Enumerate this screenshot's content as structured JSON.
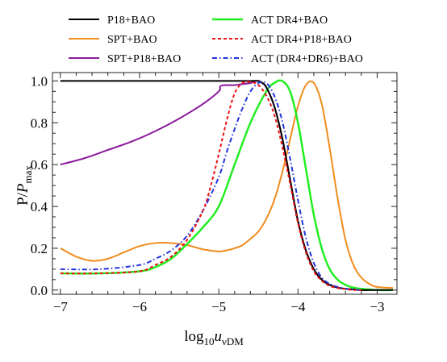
{
  "chart_data": {
    "type": "line",
    "xlabel": {
      "base": "log",
      "base_sub": "10",
      "main": "u",
      "main_sub": "νDM"
    },
    "ylabel": {
      "main": "P/",
      "italic": "P",
      "sub": "max"
    },
    "xlim": [
      -7.1,
      -2.75
    ],
    "ylim": [
      -0.02,
      1.04
    ],
    "x_ticks": [
      -7,
      -6,
      -5,
      -4,
      -3
    ],
    "x_tick_labels": [
      "−7",
      "−6",
      "−5",
      "−4",
      "−3"
    ],
    "y_ticks": [
      0.0,
      0.2,
      0.4,
      0.6,
      0.8,
      1.0
    ],
    "y_tick_labels": [
      "0.0",
      "0.2",
      "0.4",
      "0.6",
      "0.8",
      "1.0"
    ],
    "grid": false,
    "legend_position": "top",
    "series": [
      {
        "name": "P18+BAO",
        "color": "#000000",
        "dash": "solid",
        "width": 2,
        "x": [
          -7.0,
          -6.5,
          -6.0,
          -5.5,
          -5.0,
          -4.8,
          -4.7,
          -4.6,
          -4.5,
          -4.45,
          -4.4,
          -4.3,
          -4.2,
          -4.1,
          -4.0,
          -3.9,
          -3.8,
          -3.7,
          -3.6,
          -3.5,
          -3.4,
          -3.3,
          -3.2,
          -3.1,
          -3.0,
          -2.9,
          -2.8
        ],
        "y": [
          1.0,
          1.0,
          1.0,
          1.0,
          1.0,
          1.0,
          1.0,
          1.0,
          1.0,
          0.99,
          0.97,
          0.88,
          0.73,
          0.53,
          0.33,
          0.19,
          0.1,
          0.05,
          0.025,
          0.012,
          0.006,
          0.003,
          0.0,
          0.0,
          0.0,
          0.0,
          0.0
        ]
      },
      {
        "name": "SPT+BAO",
        "color": "#f08c1e",
        "dash": "solid",
        "width": 2,
        "x": [
          -7.0,
          -6.8,
          -6.6,
          -6.4,
          -6.2,
          -6.0,
          -5.8,
          -5.6,
          -5.4,
          -5.2,
          -5.0,
          -4.9,
          -4.8,
          -4.7,
          -4.6,
          -4.5,
          -4.4,
          -4.3,
          -4.2,
          -4.1,
          -4.0,
          -3.9,
          -3.8,
          -3.7,
          -3.6,
          -3.5,
          -3.4,
          -3.3,
          -3.2,
          -3.1,
          -3.0,
          -2.8
        ],
        "y": [
          0.2,
          0.16,
          0.14,
          0.15,
          0.18,
          0.21,
          0.225,
          0.225,
          0.215,
          0.195,
          0.185,
          0.19,
          0.2,
          0.215,
          0.245,
          0.28,
          0.34,
          0.43,
          0.56,
          0.72,
          0.88,
          0.98,
          0.99,
          0.89,
          0.68,
          0.44,
          0.24,
          0.12,
          0.06,
          0.03,
          0.015,
          0.01
        ]
      },
      {
        "name": "SPT+P18+BAO",
        "color": "#8b1a9b",
        "dash": "solid",
        "width": 2,
        "x": [
          -7.0,
          -6.7,
          -6.4,
          -6.1,
          -5.8,
          -5.5,
          -5.2,
          -5.0,
          -4.98,
          -4.9,
          -4.8,
          -4.7,
          -4.6,
          -4.5,
          -4.4,
          -4.3,
          -4.2,
          -4.1,
          -4.0,
          -3.9,
          -3.8,
          -3.7,
          -3.6,
          -3.5,
          -3.4,
          -3.3,
          -3.2,
          -3.1,
          -3.0,
          -2.8
        ],
        "y": [
          0.6,
          0.63,
          0.67,
          0.71,
          0.76,
          0.82,
          0.89,
          0.95,
          0.975,
          0.98,
          0.98,
          0.985,
          0.99,
          1.0,
          0.97,
          0.88,
          0.73,
          0.53,
          0.33,
          0.19,
          0.1,
          0.05,
          0.025,
          0.012,
          0.006,
          0.003,
          0.0,
          0.0,
          0.0,
          0.0
        ]
      },
      {
        "name": "ACT DR4+BAO",
        "color": "#22ee22",
        "dash": "solid",
        "width": 2.5,
        "x": [
          -7.0,
          -6.5,
          -6.0,
          -5.8,
          -5.6,
          -5.4,
          -5.2,
          -5.0,
          -4.8,
          -4.6,
          -4.4,
          -4.3,
          -4.2,
          -4.1,
          -4.0,
          -3.9,
          -3.8,
          -3.7,
          -3.6,
          -3.5,
          -3.4,
          -3.3,
          -3.2,
          -3.1,
          -3.0,
          -2.8
        ],
        "y": [
          0.08,
          0.08,
          0.09,
          0.11,
          0.15,
          0.22,
          0.3,
          0.4,
          0.6,
          0.8,
          0.95,
          0.99,
          1.0,
          0.95,
          0.8,
          0.58,
          0.36,
          0.2,
          0.1,
          0.05,
          0.025,
          0.012,
          0.006,
          0.003,
          0.0,
          0.0
        ]
      },
      {
        "name": "ACT DR4+P18+BAO",
        "color": "#ee1111",
        "dash": "4,3",
        "width": 2,
        "x": [
          -7.0,
          -6.5,
          -6.0,
          -5.8,
          -5.6,
          -5.4,
          -5.2,
          -5.1,
          -5.0,
          -4.9,
          -4.8,
          -4.7,
          -4.6,
          -4.5,
          -4.4,
          -4.3,
          -4.2,
          -4.1,
          -4.0,
          -3.9,
          -3.8,
          -3.7,
          -3.6,
          -3.5,
          -3.4,
          -3.3,
          -3.2
        ],
        "y": [
          0.08,
          0.08,
          0.09,
          0.12,
          0.16,
          0.24,
          0.38,
          0.5,
          0.65,
          0.81,
          0.94,
          0.99,
          0.995,
          0.98,
          0.93,
          0.84,
          0.69,
          0.51,
          0.32,
          0.18,
          0.09,
          0.045,
          0.02,
          0.01,
          0.005,
          0.0,
          0.0
        ]
      },
      {
        "name": "ACT (DR4+DR6)+BAO",
        "color": "#2233dd",
        "dash": "6,3,1.5,3",
        "width": 2,
        "x": [
          -7.0,
          -6.5,
          -6.0,
          -5.8,
          -5.6,
          -5.4,
          -5.2,
          -5.0,
          -4.9,
          -4.8,
          -4.7,
          -4.6,
          -4.5,
          -4.4,
          -4.3,
          -4.2,
          -4.1,
          -4.0,
          -3.9,
          -3.8,
          -3.7,
          -3.6,
          -3.5,
          -3.4,
          -3.3,
          -3.2
        ],
        "y": [
          0.1,
          0.1,
          0.12,
          0.15,
          0.19,
          0.26,
          0.38,
          0.54,
          0.66,
          0.77,
          0.87,
          0.95,
          0.99,
          0.99,
          0.93,
          0.81,
          0.63,
          0.43,
          0.25,
          0.13,
          0.06,
          0.03,
          0.015,
          0.007,
          0.003,
          0.0
        ]
      }
    ]
  }
}
